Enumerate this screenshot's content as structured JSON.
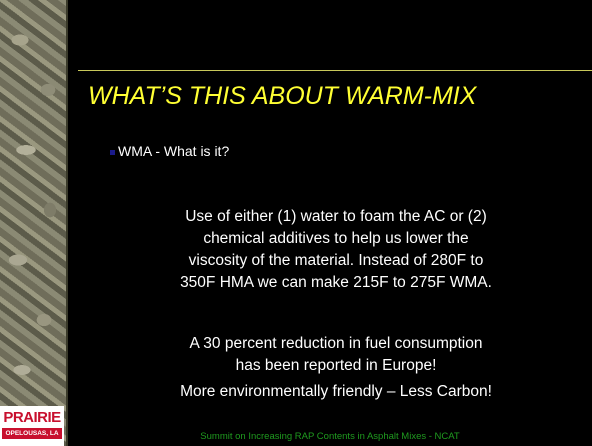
{
  "slide": {
    "title": "WHAT’S THIS ABOUT WARM-MIX",
    "bullet": "WMA - What is it?",
    "paragraph_1": [
      "Use of either (1) water to foam the AC or (2)",
      "chemical additives to help us lower the",
      "viscosity of the material.  Instead of 280F to",
      "350F HMA we can make 215F to 275F WMA."
    ],
    "paragraph_2": [
      "A 30 percent reduction in fuel consumption",
      "has been reported in Europe!"
    ],
    "paragraph_3": "More environmentally friendly – Less Carbon!",
    "footer": "Summit on Increasing RAP Contents in Asphalt Mixes - NCAT",
    "logo": {
      "name": "PRAIRIE",
      "location": "OPELOUSAS, LA"
    }
  }
}
